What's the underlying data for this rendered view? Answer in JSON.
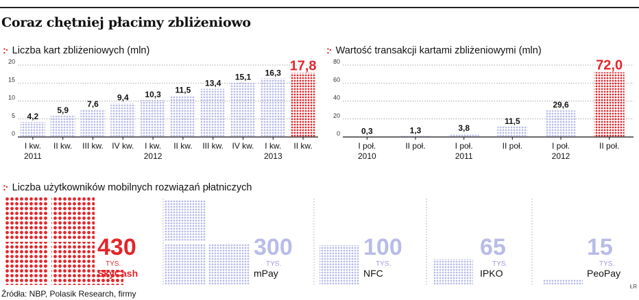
{
  "title": "Coraz chętniej płacimy zbliżeniowo",
  "source": "Źródła: NBP, Polasik Research, firmy",
  "credit": "ŁR",
  "colors": {
    "accent": "#e3262b",
    "bars": "#b9bbe8",
    "dark": "#111111",
    "grid": "#888888"
  },
  "chart_data": [
    {
      "type": "bar",
      "title": "Liczba kart zbliżeniowych (mln)",
      "categories": [
        [
          "I kw.",
          "2011"
        ],
        [
          "II kw.",
          ""
        ],
        [
          "III kw.",
          ""
        ],
        [
          "IV kw.",
          ""
        ],
        [
          "I kw.",
          "2012"
        ],
        [
          "II kw.",
          ""
        ],
        [
          "III kw.",
          ""
        ],
        [
          "IV kw.",
          ""
        ],
        [
          "I kw.",
          "2013"
        ],
        [
          "II kw.",
          ""
        ]
      ],
      "values": [
        4.2,
        5.9,
        7.6,
        9.4,
        10.3,
        11.5,
        13.4,
        15.1,
        16.3,
        17.8
      ],
      "value_labels": [
        "4,2",
        "5,9",
        "7,6",
        "9,4",
        "10,3",
        "11,5",
        "13,4",
        "15,1",
        "16,3",
        "17,8"
      ],
      "highlight_index": 9,
      "yticks": [
        "0",
        "5",
        "10",
        "15",
        "20"
      ],
      "ylim": [
        0,
        20
      ],
      "grid": true
    },
    {
      "type": "bar",
      "title": "Wartość transakcji kartami zbliżeniowymi (mln)",
      "categories": [
        [
          "I poł.",
          "2010"
        ],
        [
          "II poł.",
          ""
        ],
        [
          "I poł.",
          "2011"
        ],
        [
          "II poł.",
          ""
        ],
        [
          "I poł.",
          "2012"
        ],
        [
          "II poł.",
          ""
        ]
      ],
      "values": [
        0.3,
        1.3,
        3.8,
        11.5,
        29.6,
        72.0
      ],
      "value_labels": [
        "0,3",
        "1,3",
        "3,8",
        "11,5",
        "29,6",
        "72,0"
      ],
      "highlight_index": 5,
      "yticks": [
        "0",
        "20",
        "40",
        "60",
        "80"
      ],
      "ylim": [
        0,
        80
      ],
      "grid": true
    },
    {
      "type": "bar",
      "title": "Liczba użytkowników mobilnych rozwiązań płatniczych",
      "categories": [
        "SkyCash",
        "mPay",
        "NFC",
        "IPKO",
        "PeoPay"
      ],
      "values": [
        430,
        300,
        100,
        65,
        15
      ],
      "value_labels": [
        "430",
        "300",
        "100",
        "65",
        "15"
      ],
      "unit_label": "TYS.",
      "highlight_index": 0
    }
  ]
}
